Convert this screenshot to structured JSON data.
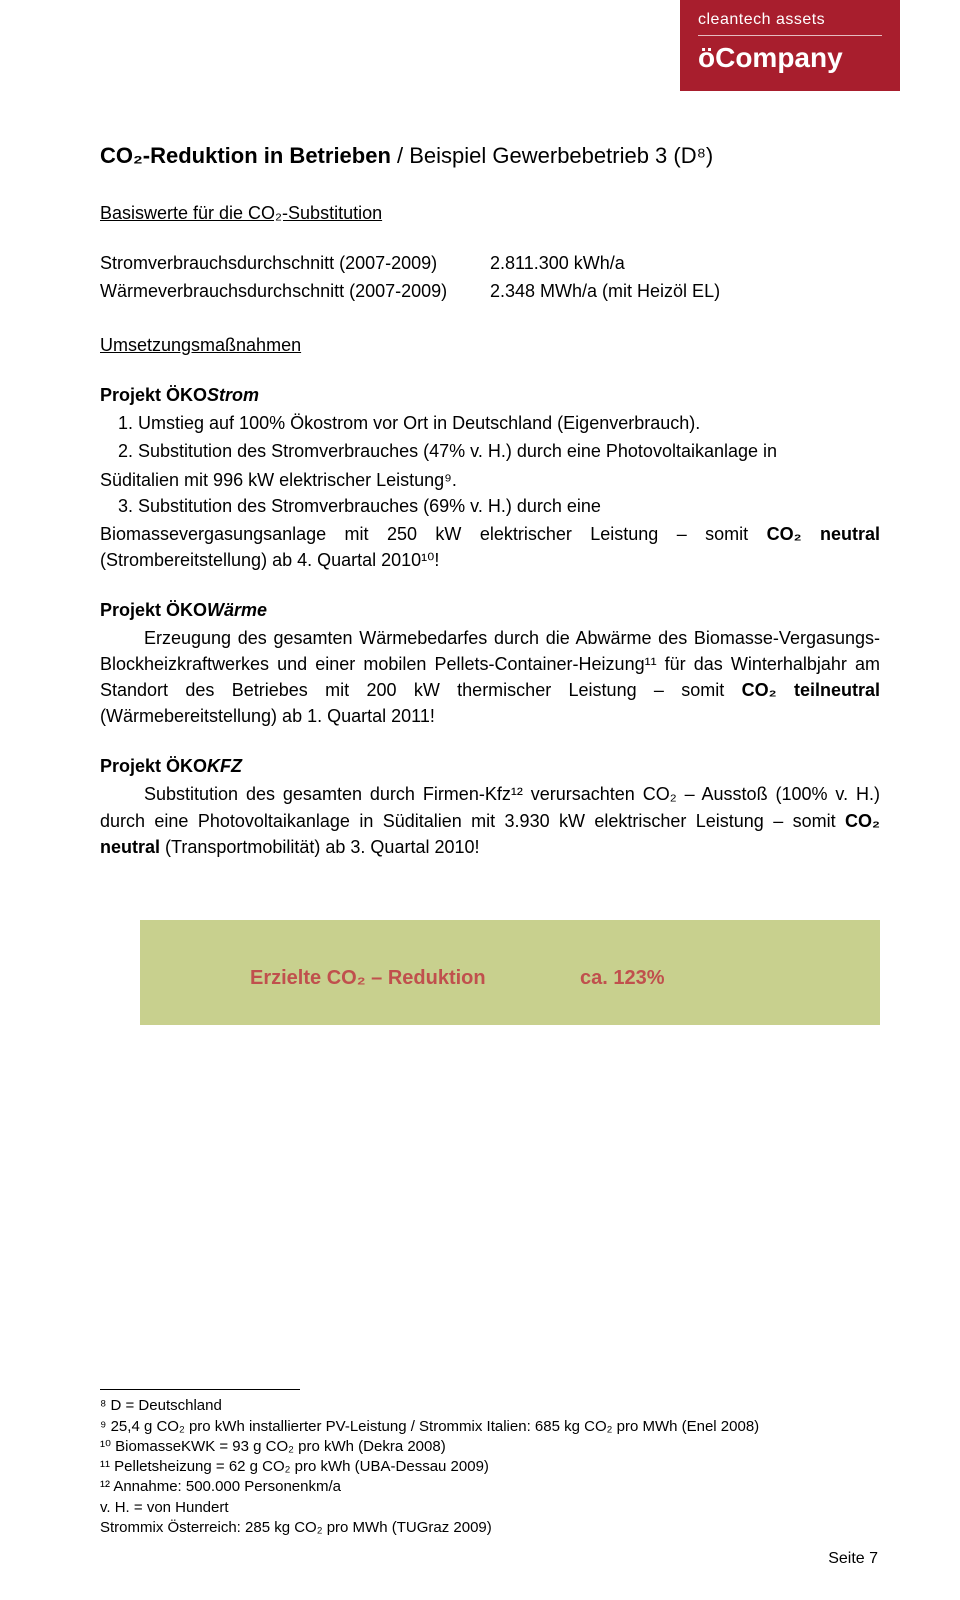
{
  "logo": {
    "top": "cleantech assets",
    "main": "öCompany"
  },
  "title": {
    "main": "CO₂-Reduktion in Betrieben",
    "sub": " / Beispiel Gewerbebetrieb 3 (D⁸)"
  },
  "basis": {
    "heading": "Basiswerte für die CO₂-Substitution",
    "rows": [
      {
        "k": "Stromverbrauchsdurchschnitt (2007-2009)",
        "v": "2.811.300 kWh/a"
      },
      {
        "k": "Wärmeverbrauchsdurchschnitt (2007-2009)",
        "v": "2.348 MWh/a (mit Heizöl EL)"
      }
    ]
  },
  "umsetzung_heading": "Umsetzungsmaßnahmen",
  "proj_strom": {
    "head_prefix": "Projekt ÖKO",
    "head_suffix": "Strom",
    "items": [
      "1. Umstieg auf 100% Ökostrom vor Ort in Deutschland (Eigenverbrauch).",
      "2. Substitution des Stromverbrauches (47% v. H.) durch eine Photovoltaikanlage in"
    ],
    "cont1": "Süditalien mit 996 kW elektrischer Leistung⁹.",
    "item3": "3.   Substitution   des   Stromverbrauches   (69%   v.   H.)   durch   eine",
    "cont2a": "Biomassevergasungsanlage mit 250 kW elektrischer Leistung – somit ",
    "cont2b": "CO₂ neutral",
    "cont2c": " (Strombereitstellung) ab 4. Quartal 2010¹⁰!"
  },
  "proj_waerme": {
    "head_prefix": "Projekt ÖKO",
    "head_suffix": "Wärme",
    "p1a": "Erzeugung des gesamten Wärmebedarfes durch die Abwärme des Biomasse-Vergasungs-Blockheizkraftwerkes und einer mobilen Pellets-Container-Heizung¹¹ für das Winterhalbjahr am Standort des Betriebes mit 200 kW thermischer Leistung – somit ",
    "p1b": "CO₂ teilneutral",
    "p1c": " (Wärmebereitstellung) ab 1. Quartal 2011!"
  },
  "proj_kfz": {
    "head_prefix": "Projekt ÖKO",
    "head_suffix": "KFZ",
    "p1a": "Substitution des gesamten durch Firmen-Kfz¹² verursachten CO₂ – Ausstoß (100% v. H.) durch eine Photovoltaikanlage in Süditalien mit 3.930 kW elektrischer Leistung – somit ",
    "p1b": "CO₂ neutral",
    "p1c": " (Transportmobilität) ab 3. Quartal 2010!"
  },
  "result": {
    "label": "Erzielte CO₂ – Reduktion",
    "value": "ca. 123%",
    "bg_color": "#c8d08e",
    "text_color": "#c0504d"
  },
  "footnotes": [
    "⁸ D = Deutschland",
    "⁹ 25,4 g CO₂ pro kWh installierter PV-Leistung / Strommix Italien: 685 kg CO₂ pro MWh  (Enel 2008)",
    "¹⁰ BiomasseKWK = 93 g CO₂ pro kWh (Dekra 2008)",
    "¹¹ Pelletsheizung = 62 g CO₂ pro kWh (UBA-Dessau 2009)",
    "¹² Annahme: 500.000 Personenkm/a",
    "v. H. = von Hundert",
    "Strommix Österreich: 285 kg CO₂ pro MWh  (TUGraz  2009)"
  ],
  "page_number": "Seite 7"
}
